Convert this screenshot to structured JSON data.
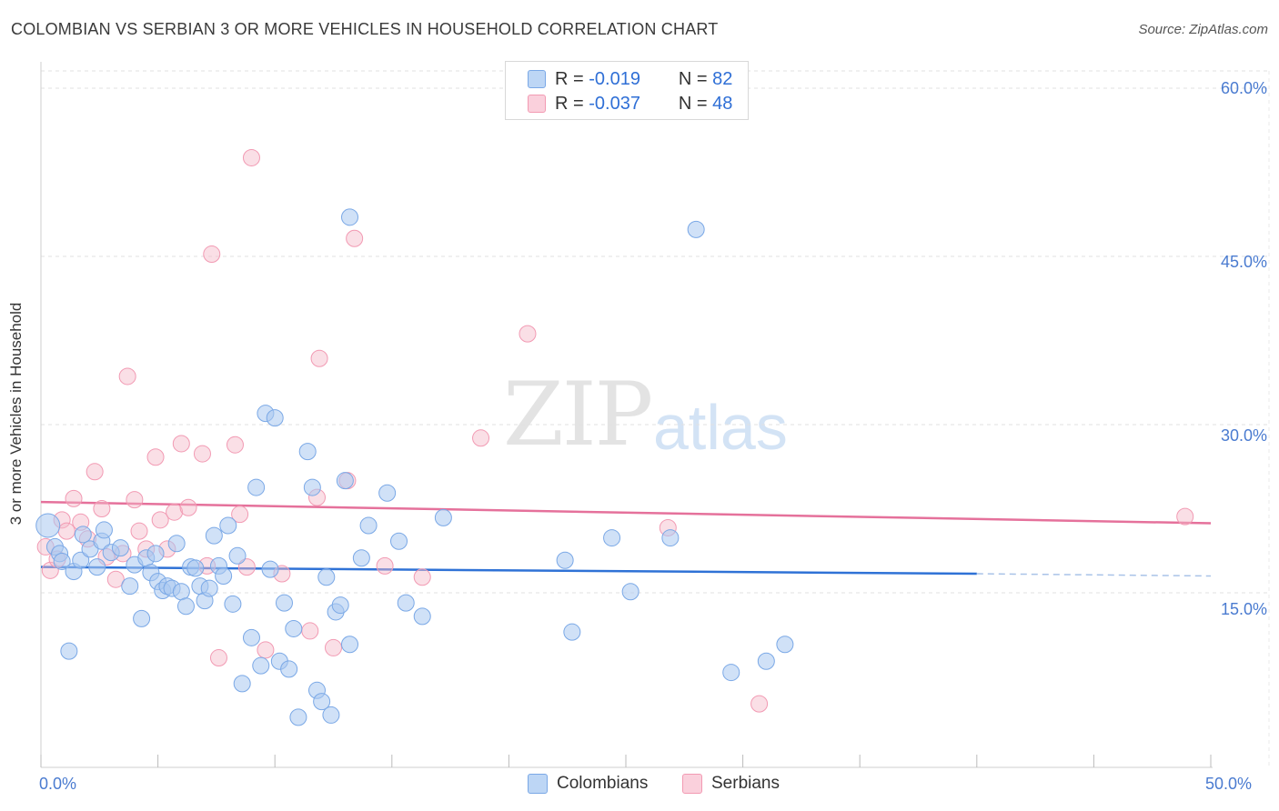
{
  "header": {
    "title": "COLOMBIAN VS SERBIAN 3 OR MORE VEHICLES IN HOUSEHOLD CORRELATION CHART",
    "source": "Source: ZipAtlas.com"
  },
  "watermark": {
    "zip": "ZIP",
    "atlas": "atlas"
  },
  "legend": {
    "rows": [
      {
        "r_label": "R =",
        "r_value": "-0.019",
        "n_label": "N =",
        "n_value": "82",
        "color": "#a9c8f0"
      },
      {
        "r_label": "R =",
        "r_value": "-0.037",
        "n_label": "N =",
        "n_value": "48",
        "color": "#f5b8c8"
      }
    ]
  },
  "bottom_legend": {
    "colombians": "Colombians",
    "serbians": "Serbians"
  },
  "chart_data": {
    "type": "scatter",
    "title": "COLOMBIAN VS SERBIAN 3 OR MORE VEHICLES IN HOUSEHOLD CORRELATION CHART",
    "xlabel": "",
    "ylabel": "3 or more Vehicles in Household",
    "xlim": [
      0,
      50
    ],
    "ylim": [
      0,
      62
    ],
    "x_tick_labels": [
      "0.0%",
      "50.0%"
    ],
    "y_ticks": [
      15,
      30,
      45,
      60
    ],
    "y_tick_labels": [
      "15.0%",
      "30.0%",
      "45.0%",
      "60.0%"
    ],
    "grid": true,
    "legend_placement": "top-center",
    "series": [
      {
        "name": "Colombians",
        "color": "#7aa8e6",
        "trend": {
          "x": [
            0,
            40
          ],
          "y": [
            17.3,
            16.7
          ],
          "dashed_to": [
            50,
            16.5
          ]
        },
        "points": [
          [
            0.3,
            21.0
          ],
          [
            0.6,
            19.1
          ],
          [
            0.8,
            18.5
          ],
          [
            0.9,
            17.8
          ],
          [
            1.2,
            9.8
          ],
          [
            1.4,
            16.9
          ],
          [
            1.7,
            17.9
          ],
          [
            1.8,
            20.2
          ],
          [
            2.1,
            18.9
          ],
          [
            2.4,
            17.3
          ],
          [
            2.6,
            19.6
          ],
          [
            2.7,
            20.6
          ],
          [
            3.0,
            18.6
          ],
          [
            3.4,
            19.0
          ],
          [
            3.8,
            15.6
          ],
          [
            4.0,
            17.5
          ],
          [
            4.3,
            12.7
          ],
          [
            4.5,
            18.1
          ],
          [
            4.7,
            16.8
          ],
          [
            4.9,
            18.5
          ],
          [
            5.0,
            16.0
          ],
          [
            5.2,
            15.2
          ],
          [
            5.4,
            15.6
          ],
          [
            5.6,
            15.4
          ],
          [
            5.8,
            19.4
          ],
          [
            6.0,
            15.1
          ],
          [
            6.2,
            13.8
          ],
          [
            6.4,
            17.3
          ],
          [
            6.6,
            17.2
          ],
          [
            6.8,
            15.6
          ],
          [
            7.0,
            14.3
          ],
          [
            7.2,
            15.4
          ],
          [
            7.4,
            20.1
          ],
          [
            7.6,
            17.4
          ],
          [
            7.8,
            16.5
          ],
          [
            8.0,
            21.0
          ],
          [
            8.2,
            14.0
          ],
          [
            8.4,
            18.3
          ],
          [
            8.6,
            6.9
          ],
          [
            9.0,
            11.0
          ],
          [
            9.2,
            24.4
          ],
          [
            9.4,
            8.5
          ],
          [
            9.6,
            31.0
          ],
          [
            9.8,
            17.1
          ],
          [
            10.0,
            30.6
          ],
          [
            10.2,
            8.9
          ],
          [
            10.4,
            14.1
          ],
          [
            10.6,
            8.2
          ],
          [
            10.8,
            11.8
          ],
          [
            11.0,
            3.9
          ],
          [
            11.4,
            27.6
          ],
          [
            11.6,
            24.4
          ],
          [
            11.8,
            6.3
          ],
          [
            12.0,
            5.3
          ],
          [
            12.2,
            16.4
          ],
          [
            12.4,
            4.1
          ],
          [
            12.6,
            13.3
          ],
          [
            12.8,
            13.9
          ],
          [
            13.0,
            25.0
          ],
          [
            13.2,
            10.4
          ],
          [
            13.2,
            48.5
          ],
          [
            13.7,
            18.1
          ],
          [
            14.0,
            21.0
          ],
          [
            14.8,
            23.9
          ],
          [
            15.3,
            19.6
          ],
          [
            15.6,
            14.1
          ],
          [
            16.3,
            12.9
          ],
          [
            17.2,
            21.7
          ],
          [
            22.4,
            17.9
          ],
          [
            22.7,
            11.5
          ],
          [
            24.4,
            19.9
          ],
          [
            25.2,
            15.1
          ],
          [
            26.9,
            19.9
          ],
          [
            28.0,
            47.4
          ],
          [
            29.5,
            7.9
          ],
          [
            31.0,
            8.9
          ],
          [
            31.8,
            10.4
          ]
        ]
      },
      {
        "name": "Serbians",
        "color": "#f29ab3",
        "trend": {
          "x": [
            0,
            50
          ],
          "y": [
            23.1,
            21.2
          ]
        },
        "points": [
          [
            0.2,
            19.1
          ],
          [
            0.4,
            17.0
          ],
          [
            0.7,
            18.0
          ],
          [
            0.9,
            21.5
          ],
          [
            1.1,
            20.5
          ],
          [
            1.4,
            23.4
          ],
          [
            1.7,
            21.3
          ],
          [
            2.0,
            19.8
          ],
          [
            2.3,
            25.8
          ],
          [
            2.6,
            22.5
          ],
          [
            2.8,
            18.2
          ],
          [
            3.2,
            16.2
          ],
          [
            3.5,
            18.5
          ],
          [
            3.7,
            34.3
          ],
          [
            4.0,
            23.3
          ],
          [
            4.2,
            20.5
          ],
          [
            4.5,
            18.9
          ],
          [
            4.9,
            27.1
          ],
          [
            5.1,
            21.5
          ],
          [
            5.4,
            18.9
          ],
          [
            5.7,
            22.2
          ],
          [
            6.0,
            28.3
          ],
          [
            6.3,
            22.6
          ],
          [
            6.9,
            27.4
          ],
          [
            7.1,
            17.4
          ],
          [
            7.3,
            45.2
          ],
          [
            7.6,
            9.2
          ],
          [
            8.3,
            28.2
          ],
          [
            8.5,
            22.0
          ],
          [
            8.8,
            17.3
          ],
          [
            9.0,
            53.8
          ],
          [
            9.6,
            9.9
          ],
          [
            10.3,
            16.7
          ],
          [
            11.5,
            11.6
          ],
          [
            11.8,
            23.5
          ],
          [
            11.9,
            35.9
          ],
          [
            12.5,
            10.1
          ],
          [
            13.1,
            25.0
          ],
          [
            13.4,
            46.6
          ],
          [
            14.7,
            17.4
          ],
          [
            16.3,
            16.4
          ],
          [
            18.8,
            28.8
          ],
          [
            20.8,
            38.1
          ],
          [
            26.8,
            20.8
          ],
          [
            30.7,
            5.1
          ],
          [
            48.9,
            21.8
          ]
        ]
      }
    ]
  }
}
